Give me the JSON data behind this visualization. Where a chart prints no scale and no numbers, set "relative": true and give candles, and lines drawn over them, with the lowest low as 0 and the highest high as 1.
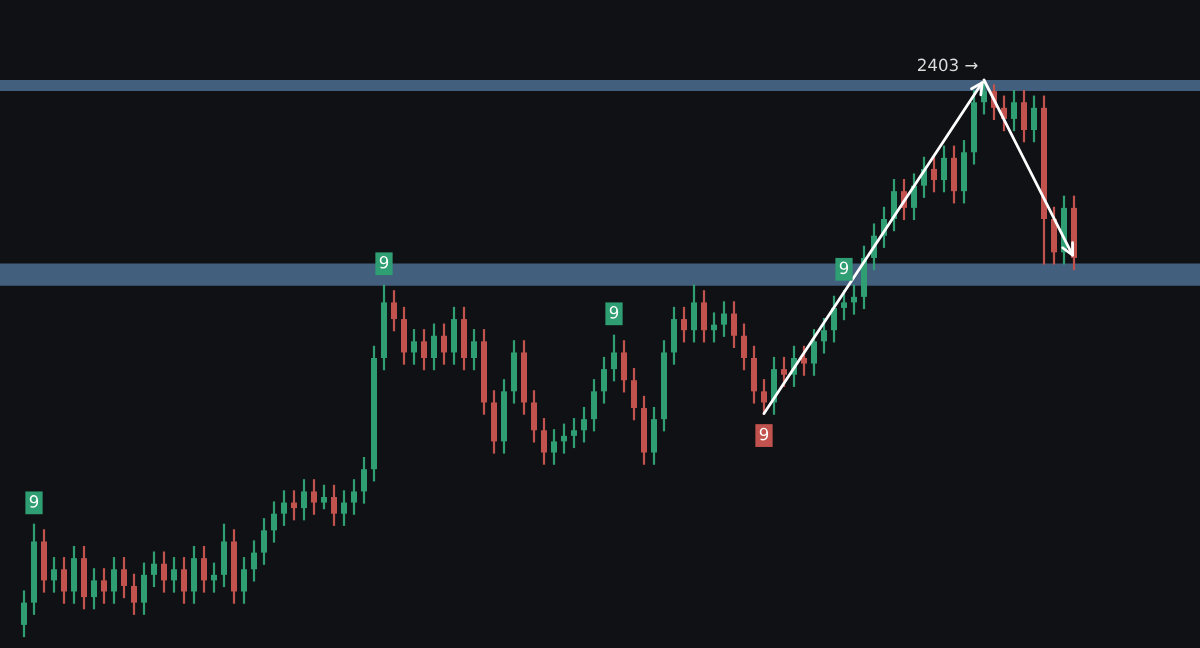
{
  "chart_data": {
    "type": "candlestick",
    "relative": true,
    "categories": [
      null,
      null,
      null,
      null,
      null,
      null,
      null,
      null,
      null,
      null,
      null,
      null,
      null,
      null,
      null,
      null,
      null,
      null,
      null,
      null,
      null,
      null,
      null,
      null,
      null,
      null,
      null,
      null,
      null,
      null,
      null,
      null,
      null,
      null,
      null,
      null,
      null,
      null,
      null,
      null,
      null,
      null,
      null,
      null,
      null,
      null,
      null,
      null,
      null,
      null,
      null,
      null,
      null,
      null,
      null,
      null,
      null,
      null,
      null,
      null,
      null,
      null,
      null,
      null,
      null,
      null,
      null,
      null,
      null,
      null,
      null,
      null,
      null,
      null,
      null,
      null,
      null,
      null,
      null,
      null,
      null,
      null,
      null,
      null,
      null,
      null,
      null,
      null,
      null,
      null,
      null,
      null,
      null,
      null,
      null,
      null,
      null,
      null,
      null,
      null,
      null,
      null,
      null,
      null,
      null,
      null
    ],
    "value_labels": [
      null,
      "9",
      null,
      null,
      null,
      null,
      null,
      null,
      null,
      null,
      null,
      null,
      null,
      null,
      null,
      null,
      null,
      null,
      null,
      null,
      null,
      null,
      null,
      null,
      null,
      null,
      null,
      null,
      null,
      null,
      null,
      null,
      null,
      null,
      null,
      null,
      "9",
      null,
      null,
      null,
      null,
      null,
      null,
      null,
      null,
      null,
      null,
      null,
      null,
      null,
      null,
      null,
      null,
      null,
      null,
      null,
      null,
      null,
      null,
      "9",
      null,
      null,
      null,
      null,
      null,
      null,
      null,
      null,
      null,
      null,
      null,
      null,
      null,
      null,
      "9",
      null,
      null,
      null,
      null,
      null,
      null,
      null,
      "9",
      null,
      null,
      null,
      null,
      null,
      null,
      null,
      null,
      null,
      null,
      null,
      null,
      null,
      null,
      null,
      null,
      null,
      null,
      null,
      null,
      null,
      null,
      null
    ],
    "colors": [
      "#2f9e72",
      "#2f9e72",
      "#c2524e",
      "#2f9e72",
      "#c2524e",
      "#2f9e72",
      "#c2524e",
      "#2f9e72",
      "#c2524e",
      "#2f9e72",
      "#c2524e",
      "#c2524e",
      "#2f9e72",
      "#2f9e72",
      "#c2524e",
      "#2f9e72",
      "#c2524e",
      "#2f9e72",
      "#c2524e",
      "#2f9e72",
      "#2f9e72",
      "#c2524e",
      "#2f9e72",
      "#2f9e72",
      "#2f9e72",
      "#2f9e72",
      "#2f9e72",
      "#c2524e",
      "#2f9e72",
      "#c2524e",
      "#2f9e72",
      "#c2524e",
      "#2f9e72",
      "#2f9e72",
      "#2f9e72",
      "#2f9e72",
      "#2f9e72",
      "#c2524e",
      "#c2524e",
      "#2f9e72",
      "#c2524e",
      "#2f9e72",
      "#c2524e",
      "#2f9e72",
      "#c2524e",
      "#2f9e72",
      "#c2524e",
      "#c2524e",
      "#2f9e72",
      "#2f9e72",
      "#c2524e",
      "#c2524e",
      "#c2524e",
      "#2f9e72",
      "#2f9e72",
      "#2f9e72",
      "#2f9e72",
      "#2f9e72",
      "#2f9e72",
      "#2f9e72",
      "#c2524e",
      "#c2524e",
      "#c2524e",
      "#2f9e72",
      "#2f9e72",
      "#2f9e72",
      "#c2524e",
      "#2f9e72",
      "#c2524e",
      "#2f9e72",
      "#2f9e72",
      "#c2524e",
      "#c2524e",
      "#c2524e",
      "#c2524e",
      "#2f9e72",
      "#c2524e",
      "#2f9e72",
      "#c2524e",
      "#2f9e72",
      "#2f9e72",
      "#2f9e72",
      "#2f9e72",
      "#2f9e72",
      "#2f9e72",
      "#2f9e72",
      "#2f9e72",
      "#2f9e72",
      "#c2524e",
      "#2f9e72",
      "#2f9e72",
      "#c2524e",
      "#2f9e72",
      "#c2524e",
      "#2f9e72",
      "#2f9e72",
      "#2f9e72",
      "#c2524e",
      "#c2524e",
      "#2f9e72",
      "#c2524e",
      "#2f9e72",
      "#c2524e",
      "#c2524e",
      "#2f9e72",
      "#c2524e"
    ],
    "ohlc": [
      [
        0.02,
        0.08,
        0,
        0.06
      ],
      [
        0.06,
        0.2,
        0.04,
        0.17
      ],
      [
        0.17,
        0.19,
        0.08,
        0.1
      ],
      [
        0.1,
        0.14,
        0.08,
        0.12
      ],
      [
        0.12,
        0.14,
        0.06,
        0.08
      ],
      [
        0.08,
        0.16,
        0.06,
        0.14
      ],
      [
        0.14,
        0.16,
        0.05,
        0.07
      ],
      [
        0.07,
        0.12,
        0.05,
        0.1
      ],
      [
        0.1,
        0.12,
        0.06,
        0.08
      ],
      [
        0.08,
        0.14,
        0.06,
        0.12
      ],
      [
        0.12,
        0.14,
        0.07,
        0.09
      ],
      [
        0.09,
        0.11,
        0.04,
        0.06
      ],
      [
        0.06,
        0.13,
        0.04,
        0.11
      ],
      [
        0.11,
        0.15,
        0.09,
        0.13
      ],
      [
        0.13,
        0.15,
        0.08,
        0.1
      ],
      [
        0.1,
        0.14,
        0.08,
        0.12
      ],
      [
        0.12,
        0.14,
        0.06,
        0.08
      ],
      [
        0.08,
        0.16,
        0.06,
        0.14
      ],
      [
        0.14,
        0.16,
        0.08,
        0.1
      ],
      [
        0.1,
        0.13,
        0.08,
        0.11
      ],
      [
        0.11,
        0.2,
        0.09,
        0.17
      ],
      [
        0.17,
        0.19,
        0.06,
        0.08
      ],
      [
        0.08,
        0.14,
        0.06,
        0.12
      ],
      [
        0.12,
        0.17,
        0.1,
        0.15
      ],
      [
        0.15,
        0.21,
        0.13,
        0.19
      ],
      [
        0.19,
        0.24,
        0.17,
        0.22
      ],
      [
        0.22,
        0.26,
        0.2,
        0.24
      ],
      [
        0.24,
        0.26,
        0.21,
        0.23
      ],
      [
        0.23,
        0.28,
        0.21,
        0.26
      ],
      [
        0.26,
        0.28,
        0.22,
        0.24
      ],
      [
        0.24,
        0.27,
        0.23,
        0.25
      ],
      [
        0.25,
        0.27,
        0.2,
        0.22
      ],
      [
        0.22,
        0.26,
        0.2,
        0.24
      ],
      [
        0.24,
        0.28,
        0.22,
        0.26
      ],
      [
        0.26,
        0.32,
        0.24,
        0.3
      ],
      [
        0.3,
        0.52,
        0.28,
        0.5
      ],
      [
        0.5,
        0.63,
        0.48,
        0.6
      ],
      [
        0.6,
        0.62,
        0.55,
        0.57
      ],
      [
        0.57,
        0.59,
        0.49,
        0.51
      ],
      [
        0.51,
        0.55,
        0.49,
        0.53
      ],
      [
        0.53,
        0.55,
        0.48,
        0.5
      ],
      [
        0.5,
        0.56,
        0.48,
        0.54
      ],
      [
        0.54,
        0.56,
        0.49,
        0.51
      ],
      [
        0.51,
        0.59,
        0.49,
        0.57
      ],
      [
        0.57,
        0.59,
        0.48,
        0.5
      ],
      [
        0.5,
        0.55,
        0.48,
        0.53
      ],
      [
        0.53,
        0.55,
        0.4,
        0.42
      ],
      [
        0.42,
        0.44,
        0.33,
        0.35
      ],
      [
        0.35,
        0.46,
        0.33,
        0.44
      ],
      [
        0.44,
        0.53,
        0.42,
        0.51
      ],
      [
        0.51,
        0.53,
        0.4,
        0.42
      ],
      [
        0.42,
        0.44,
        0.35,
        0.37
      ],
      [
        0.37,
        0.39,
        0.31,
        0.33
      ],
      [
        0.33,
        0.37,
        0.31,
        0.35
      ],
      [
        0.35,
        0.38,
        0.33,
        0.36
      ],
      [
        0.36,
        0.39,
        0.34,
        0.37
      ],
      [
        0.37,
        0.41,
        0.35,
        0.39
      ],
      [
        0.39,
        0.46,
        0.37,
        0.44
      ],
      [
        0.44,
        0.5,
        0.42,
        0.48
      ],
      [
        0.48,
        0.54,
        0.46,
        0.51
      ],
      [
        0.51,
        0.53,
        0.44,
        0.46
      ],
      [
        0.46,
        0.48,
        0.39,
        0.41
      ],
      [
        0.41,
        0.43,
        0.31,
        0.33
      ],
      [
        0.33,
        0.41,
        0.31,
        0.39
      ],
      [
        0.39,
        0.53,
        0.37,
        0.51
      ],
      [
        0.51,
        0.59,
        0.49,
        0.57
      ],
      [
        0.57,
        0.59,
        0.53,
        0.55
      ],
      [
        0.55,
        0.63,
        0.53,
        0.6
      ],
      [
        0.6,
        0.62,
        0.53,
        0.55
      ],
      [
        0.55,
        0.58,
        0.53,
        0.56
      ],
      [
        0.56,
        0.6,
        0.54,
        0.58
      ],
      [
        0.58,
        0.6,
        0.52,
        0.54
      ],
      [
        0.54,
        0.56,
        0.48,
        0.5
      ],
      [
        0.5,
        0.52,
        0.42,
        0.44
      ],
      [
        0.44,
        0.46,
        0.4,
        0.42
      ],
      [
        0.42,
        0.5,
        0.4,
        0.48
      ],
      [
        0.48,
        0.5,
        0.45,
        0.47
      ],
      [
        0.47,
        0.52,
        0.45,
        0.5
      ],
      [
        0.5,
        0.52,
        0.47,
        0.49
      ],
      [
        0.49,
        0.55,
        0.47,
        0.53
      ],
      [
        0.53,
        0.57,
        0.51,
        0.55
      ],
      [
        0.55,
        0.61,
        0.53,
        0.59
      ],
      [
        0.59,
        0.62,
        0.57,
        0.6
      ],
      [
        0.6,
        0.63,
        0.58,
        0.61
      ],
      [
        0.61,
        0.7,
        0.59,
        0.68
      ],
      [
        0.68,
        0.74,
        0.66,
        0.72
      ],
      [
        0.72,
        0.77,
        0.7,
        0.75
      ],
      [
        0.75,
        0.82,
        0.73,
        0.8
      ],
      [
        0.8,
        0.82,
        0.75,
        0.77
      ],
      [
        0.77,
        0.83,
        0.75,
        0.81
      ],
      [
        0.81,
        0.86,
        0.79,
        0.84
      ],
      [
        0.84,
        0.86,
        0.8,
        0.82
      ],
      [
        0.82,
        0.88,
        0.8,
        0.86
      ],
      [
        0.86,
        0.88,
        0.78,
        0.8
      ],
      [
        0.8,
        0.89,
        0.78,
        0.87
      ],
      [
        0.87,
        0.98,
        0.85,
        0.96
      ],
      [
        0.96,
        1.0,
        0.94,
        0.98
      ],
      [
        0.98,
        0.99,
        0.93,
        0.95
      ],
      [
        0.95,
        0.97,
        0.91,
        0.93
      ],
      [
        0.93,
        0.98,
        0.91,
        0.96
      ],
      [
        0.96,
        0.98,
        0.89,
        0.91
      ],
      [
        0.91,
        0.97,
        0.89,
        0.95
      ],
      [
        0.95,
        0.97,
        0.67,
        0.75
      ],
      [
        0.75,
        0.77,
        0.67,
        0.69
      ],
      [
        0.69,
        0.79,
        0.67,
        0.77
      ],
      [
        0.77,
        0.79,
        0.66,
        0.68
      ]
    ],
    "bands": [
      {
        "axis": "y",
        "from": 0.63,
        "to": 0.67,
        "color": "#4b6d8f"
      },
      {
        "axis": "y",
        "from": 0.98,
        "to": 1.0,
        "color": "#4b6d8f"
      }
    ],
    "annotations": [
      "2403 →"
    ]
  }
}
